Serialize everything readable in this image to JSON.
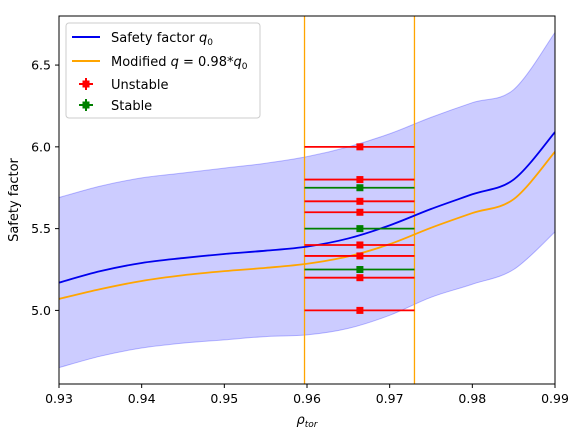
{
  "chart_data": {
    "type": "line",
    "xlabel_main": "ρ",
    "xlabel_sub": "tor",
    "ylabel": "Safety factor",
    "xlim": [
      0.93,
      0.99
    ],
    "ylim": [
      4.55,
      6.8
    ],
    "xticks": [
      "0.93",
      "0.94",
      "0.95",
      "0.96",
      "0.97",
      "0.98",
      "0.99"
    ],
    "yticks": [
      "5.0",
      "5.5",
      "6.0",
      "6.5"
    ],
    "grid": false,
    "legend_position": "top-left",
    "legend": {
      "q0_prefix": "Safety factor ",
      "q0_math": "q",
      "q0_sub": "0",
      "mod_prefix": "Modified ",
      "mod_math": "q",
      "mod_mid": " = 0.98*",
      "mod_math2": "q",
      "mod_sub": "0",
      "unstable": "Unstable",
      "stable": "Stable"
    },
    "colors": {
      "q0": "#0000ee",
      "modified": "#ffa500",
      "band": "#0000ff",
      "unstable": "#ff0000",
      "stable": "#008000",
      "vlines": "#ffa500"
    },
    "series": [
      {
        "name": "Safety factor q0",
        "x": [
          0.93,
          0.935,
          0.94,
          0.945,
          0.95,
          0.955,
          0.96,
          0.965,
          0.97,
          0.975,
          0.98,
          0.985,
          0.99
        ],
        "y": [
          5.17,
          5.24,
          5.29,
          5.32,
          5.345,
          5.365,
          5.39,
          5.44,
          5.52,
          5.62,
          5.71,
          5.8,
          6.09
        ]
      },
      {
        "name": "Modified q = 0.98*q0",
        "x": [
          0.93,
          0.935,
          0.94,
          0.945,
          0.95,
          0.955,
          0.96,
          0.965,
          0.97,
          0.975,
          0.98,
          0.985,
          0.99
        ],
        "y": [
          5.07,
          5.13,
          5.18,
          5.215,
          5.24,
          5.26,
          5.285,
          5.33,
          5.405,
          5.505,
          5.595,
          5.68,
          5.97
        ]
      }
    ],
    "band": {
      "x": [
        0.93,
        0.935,
        0.94,
        0.945,
        0.95,
        0.955,
        0.96,
        0.965,
        0.97,
        0.975,
        0.98,
        0.985,
        0.99
      ],
      "upper": [
        5.69,
        5.76,
        5.81,
        5.84,
        5.87,
        5.9,
        5.94,
        6.0,
        6.08,
        6.18,
        6.27,
        6.35,
        6.7
      ],
      "lower": [
        4.65,
        4.72,
        4.77,
        4.8,
        4.82,
        4.84,
        4.85,
        4.89,
        4.97,
        5.08,
        5.16,
        5.25,
        5.48
      ]
    },
    "vlines": [
      0.9597,
      0.973
    ],
    "points": [
      {
        "y": 6.0,
        "status": "unstable"
      },
      {
        "y": 5.8,
        "status": "unstable"
      },
      {
        "y": 5.75,
        "status": "stable"
      },
      {
        "y": 5.667,
        "status": "unstable"
      },
      {
        "y": 5.6,
        "status": "unstable"
      },
      {
        "y": 5.5,
        "status": "stable"
      },
      {
        "y": 5.4,
        "status": "unstable"
      },
      {
        "y": 5.333,
        "status": "unstable"
      },
      {
        "y": 5.25,
        "status": "stable"
      },
      {
        "y": 5.2,
        "status": "unstable"
      },
      {
        "y": 5.0,
        "status": "unstable"
      }
    ],
    "points_x": 0.9664,
    "points_xerr": [
      0.9597,
      0.973
    ]
  }
}
